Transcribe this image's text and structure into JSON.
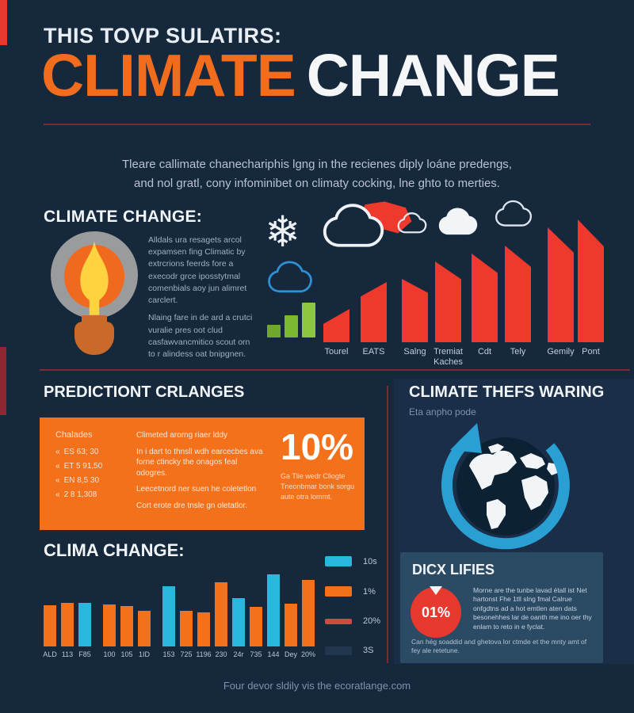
{
  "colors": {
    "background": "#16283c",
    "panel": "#1a2f47",
    "box_blue": "#2b4a63",
    "accent_orange": "#f26c1d",
    "box_orange": "#f4711b",
    "bar_red": "#ee3a2c",
    "cyan": "#29b8dc",
    "green": "#8dc63f",
    "maroon_rule": "#7e2a33",
    "white": "#f4f6f8",
    "text_light": "#b7c3d3"
  },
  "glyphs": {
    "snowflake": "❄"
  },
  "header": {
    "kicker": "THIS TOVP SULATIRS:",
    "title_accent": "CLIMATE",
    "title_rest": "CHANGE",
    "intro_line1": "Tleare callimate chanechariphis lgng in the recienes diply loáne predengs,",
    "intro_line2": "and nol gratl, cony infominibet on climaty cocking, lne ghto to merties."
  },
  "section_overview": {
    "heading": "CLIMATE CHANGE:",
    "body_1": "Alldals ura resagets arcol expamsen fing Climatic by extrcrions feerds fore a execodr grce iposstytmal comenbials aoy jun alimret carclert.",
    "body_2": "Nlaing fare in de ard a crutci vuralie pres oot clud casfawvancmitico scout orn to r alindess oat bnipgnen."
  },
  "section_predictions": {
    "heading": "PREDICTIONT CRLANGES",
    "box": {
      "bullet": "«",
      "col1_header": "Chalades",
      "col1_items": [
        "ES 63; 30",
        "ET 5 91,50",
        "EN 8,5 30",
        "2 8 1,308"
      ],
      "col2_items": [
        "Climeted arorng riaer lddy",
        "In i dart to thnsll wdh earcecbes ava forne ctincky the onagos feal odogres.",
        "Leecetnord ner suen he coletetlon",
        "Cort erote dre tnsle gn oletatlor."
      ],
      "stat_value": "10%",
      "stat_caption": "Ga Tlie wedr Cliogte Tneonbmar bonk sorgu aute otra lommt."
    }
  },
  "section_warming": {
    "heading": "CLIMATE THEFS WARING",
    "subheading": "Eta anpho pode"
  },
  "section_clima": {
    "heading": "CLIMA CHANGE:"
  },
  "section_dicx": {
    "heading": "DICX LIFIES",
    "badge": "01%",
    "body": "Morne are the tunbe lavad étall ist Net hartonst Fhe 1tll slng fmal Calrue onfgdtns ad a hot emtlen aten dats besonehhes lar de oanth me ino oer thy enlam to reto in e fyclat.",
    "note": "Can hég soaddid and ghetova lor ctmde et the mnty amt of fey ale retetune."
  },
  "footer": {
    "text": "Four devor sldily vis the ecoratlange.com"
  },
  "chart_data": [
    {
      "type": "bar",
      "title": "rising red trend bars (no axis values shown)",
      "categories": [
        "Tourel",
        "EATS",
        "Salng",
        "Tremiat Kaches",
        "Cdt",
        "Tely",
        "Gemily",
        "Pont"
      ],
      "values": [
        42,
        76,
        80,
        102,
        112,
        122,
        145,
        155
      ],
      "bar_color": "#ee3a2c",
      "xlabel": "",
      "ylabel": "",
      "unit": "relative height, px",
      "grid": false,
      "legend_position": "none"
    },
    {
      "type": "bar",
      "title": "CLIMA CHANGE:",
      "categories": [
        "ALD",
        "113",
        "F85",
        "100",
        "105",
        "1ID",
        "153",
        "725",
        "1196",
        "230",
        "24r",
        "735",
        "144",
        "Dey",
        "20%"
      ],
      "values": [
        52,
        55,
        55,
        53,
        51,
        45,
        76,
        45,
        43,
        81,
        61,
        50,
        91,
        54,
        84
      ],
      "bar_colors": [
        "#f4711b",
        "#f4711b",
        "#29b8dc",
        "#f4711b",
        "#f4711b",
        "#f4711b",
        "#29b8dc",
        "#f4711b",
        "#f4711b",
        "#f4711b",
        "#29b8dc",
        "#f4711b",
        "#29b8dc",
        "#f4711b",
        "#f4711b"
      ],
      "legend": [
        {
          "color": "#29b8dc",
          "label": "10s"
        },
        {
          "color": "#f4711b",
          "label": "1%"
        },
        {
          "color": "#cf4a42",
          "label": "20%"
        },
        {
          "color": "#20374e",
          "label": "3S"
        }
      ],
      "xlabel": "",
      "ylabel": "",
      "unit": "relative height, px",
      "grid": false,
      "legend_position": "right"
    },
    {
      "type": "bar",
      "title": "green growth mini-icon",
      "categories": [
        "",
        "",
        ""
      ],
      "values": [
        16,
        28,
        44
      ],
      "bar_colors": [
        "#6fa82d",
        "#7cb82f",
        "#8dc63f"
      ]
    }
  ]
}
